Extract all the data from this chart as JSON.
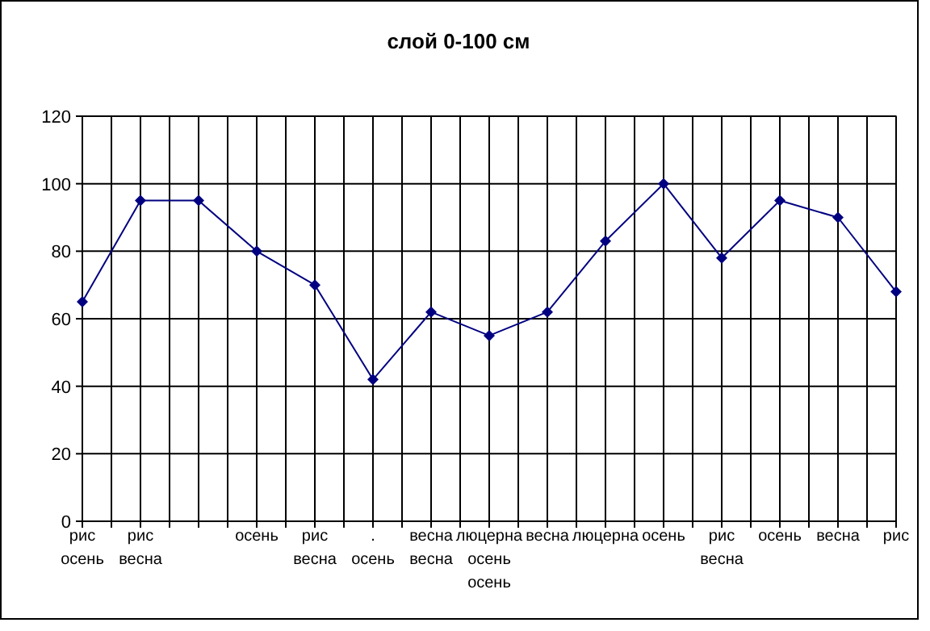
{
  "chart_data": {
    "type": "line",
    "title": "слой 0-100 см",
    "categories": [
      "рис\nосень",
      "рис\nвесна",
      null,
      "осень",
      "рис\nвесна",
      ".\nосень",
      "весна\nвесна",
      "люцерна\nосень\nосень",
      "весна",
      "люцерна",
      "осень",
      "рис\nвесна",
      "осень",
      "весна",
      "рис"
    ],
    "series": [
      {
        "color": "#000080",
        "values": [
          65,
          95,
          95,
          80,
          70,
          42,
          62,
          55,
          62,
          83,
          100,
          78,
          95,
          90,
          68
        ]
      }
    ],
    "ylim": [
      0,
      120
    ],
    "yticks": [
      0,
      20,
      40,
      60,
      80,
      100,
      120
    ],
    "grid": true,
    "marker": "diamond",
    "line_style": "solid"
  }
}
